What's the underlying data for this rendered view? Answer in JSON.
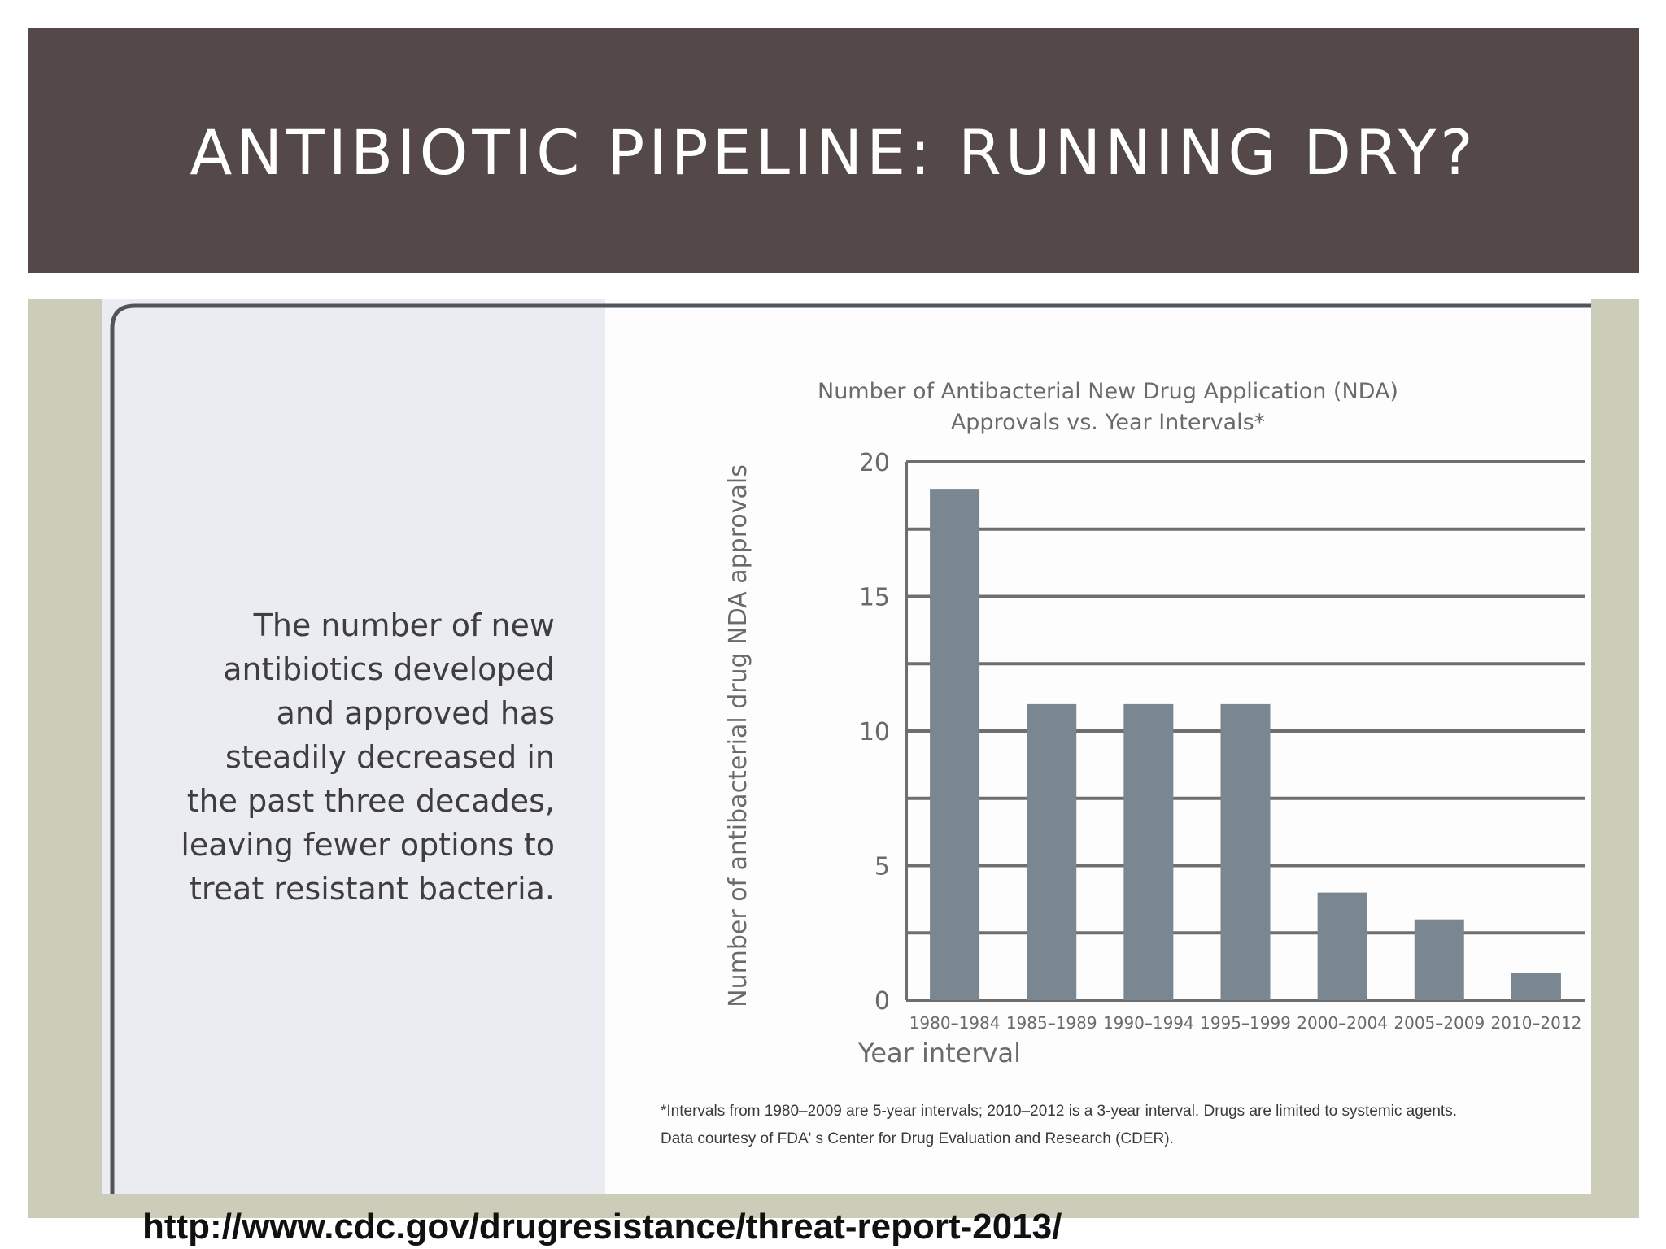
{
  "slide": {
    "title": "ANTIBIOTIC PIPELINE: RUNNING DRY?",
    "description": "The number of new\nantibiotics developed\nand approved has\nsteadily decreased in\nthe past three decades,\nleaving fewer options to\ntreat resistant bacteria.",
    "source_url": "http://www.cdc.gov/drugresistance/threat-report-2013/",
    "footnote_line1": "*Intervals from 1980–2009 are 5-year intervals; 2010–2012 is a 3-year interval. Drugs are limited to systemic agents.",
    "footnote_line2": "Data courtesy of FDA' s Center for Drug Evaluation and Research (CDER)."
  },
  "colors": {
    "title_bar": "#554849",
    "bar": "#7a8791",
    "grid": "#6e6e6e",
    "frame": "#cbcdb8",
    "left_panel": "#ebecf1"
  },
  "chart_data": {
    "type": "bar",
    "title_line1": "Number of Antibacterial New Drug Application (NDA)",
    "title_line2": "Approvals vs. Year Intervals*",
    "xlabel": "Year interval",
    "ylabel": "Number of antibacterial drug NDA approvals",
    "categories": [
      "1980–1984",
      "1985–1989",
      "1990–1994",
      "1995–1999",
      "2000–2004",
      "2005–2009",
      "2010–2012"
    ],
    "values": [
      19,
      11,
      11,
      11,
      4,
      3,
      1
    ],
    "ylim": [
      0,
      20
    ],
    "yticks": [
      "0",
      "5",
      "10",
      "15",
      "20"
    ],
    "grid_step": 2.5,
    "grid": true,
    "legend": "none"
  }
}
